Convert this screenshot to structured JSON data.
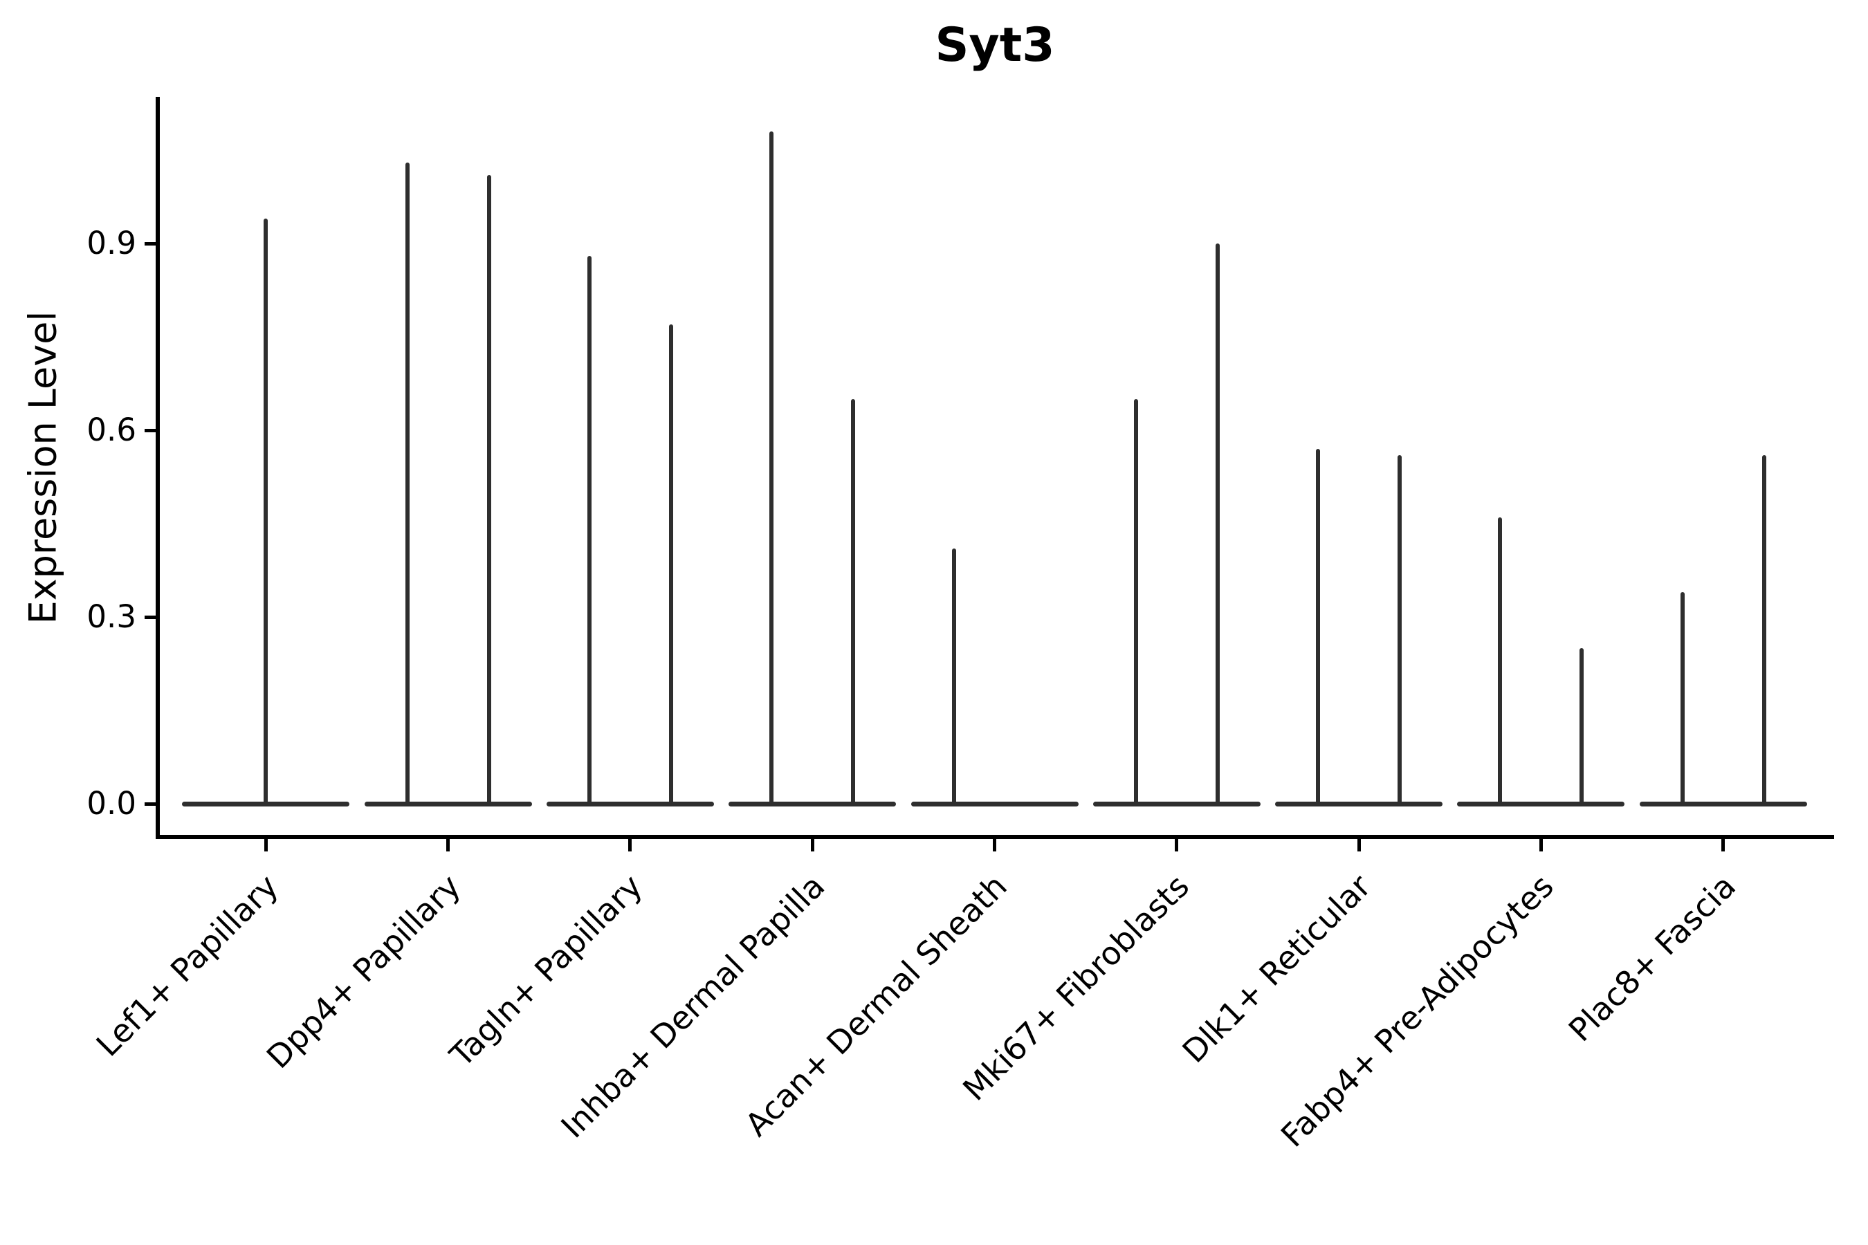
{
  "chart_data": {
    "type": "violin",
    "title": "Syt3",
    "ylabel": "Expression Level",
    "xlabel": "",
    "grid": false,
    "legend_position": "none",
    "background_color": "#ffffff",
    "axis_color": "#000000",
    "violin_color": "#2e2e2e",
    "ylim": [
      -0.06,
      1.14
    ],
    "ytick_labels": [
      "0.0",
      "0.3",
      "0.6",
      "0.9"
    ],
    "ytick_values": [
      0.0,
      0.3,
      0.6,
      0.9
    ],
    "baseline_value": 0.0,
    "description": "Violin plot of Syt3 expression; each cell type shows flat violins collapsed at 0 with thin spikes reaching the maximum expression value",
    "categories": [
      {
        "label": "Lef1+ Papillary",
        "violins": [
          {
            "pos": "center",
            "max": 0.94
          }
        ]
      },
      {
        "label": "Dpp4+ Papillary",
        "violins": [
          {
            "pos": "left",
            "max": 1.03
          },
          {
            "pos": "right",
            "max": 1.01
          }
        ]
      },
      {
        "label": "Tagln+ Papillary",
        "violins": [
          {
            "pos": "left",
            "max": 0.88
          },
          {
            "pos": "right",
            "max": 0.77
          }
        ]
      },
      {
        "label": "Inhba+ Dermal Papilla",
        "violins": [
          {
            "pos": "left",
            "max": 1.08
          },
          {
            "pos": "right",
            "max": 0.65
          }
        ]
      },
      {
        "label": "Acan+ Dermal Sheath",
        "violins": [
          {
            "pos": "left",
            "max": 0.41
          }
        ]
      },
      {
        "label": "Mki67+ Fibroblasts",
        "violins": [
          {
            "pos": "left",
            "max": 0.65
          },
          {
            "pos": "right",
            "max": 0.9
          }
        ]
      },
      {
        "label": "Dlk1+ Reticular",
        "violins": [
          {
            "pos": "left",
            "max": 0.57
          },
          {
            "pos": "right",
            "max": 0.56
          }
        ]
      },
      {
        "label": "Fabp4+ Pre-Adipocytes",
        "violins": [
          {
            "pos": "left",
            "max": 0.46
          },
          {
            "pos": "right",
            "max": 0.25
          }
        ]
      },
      {
        "label": "Plac8+ Fascia",
        "violins": [
          {
            "pos": "left",
            "max": 0.34
          },
          {
            "pos": "right",
            "max": 0.56
          }
        ]
      }
    ]
  }
}
